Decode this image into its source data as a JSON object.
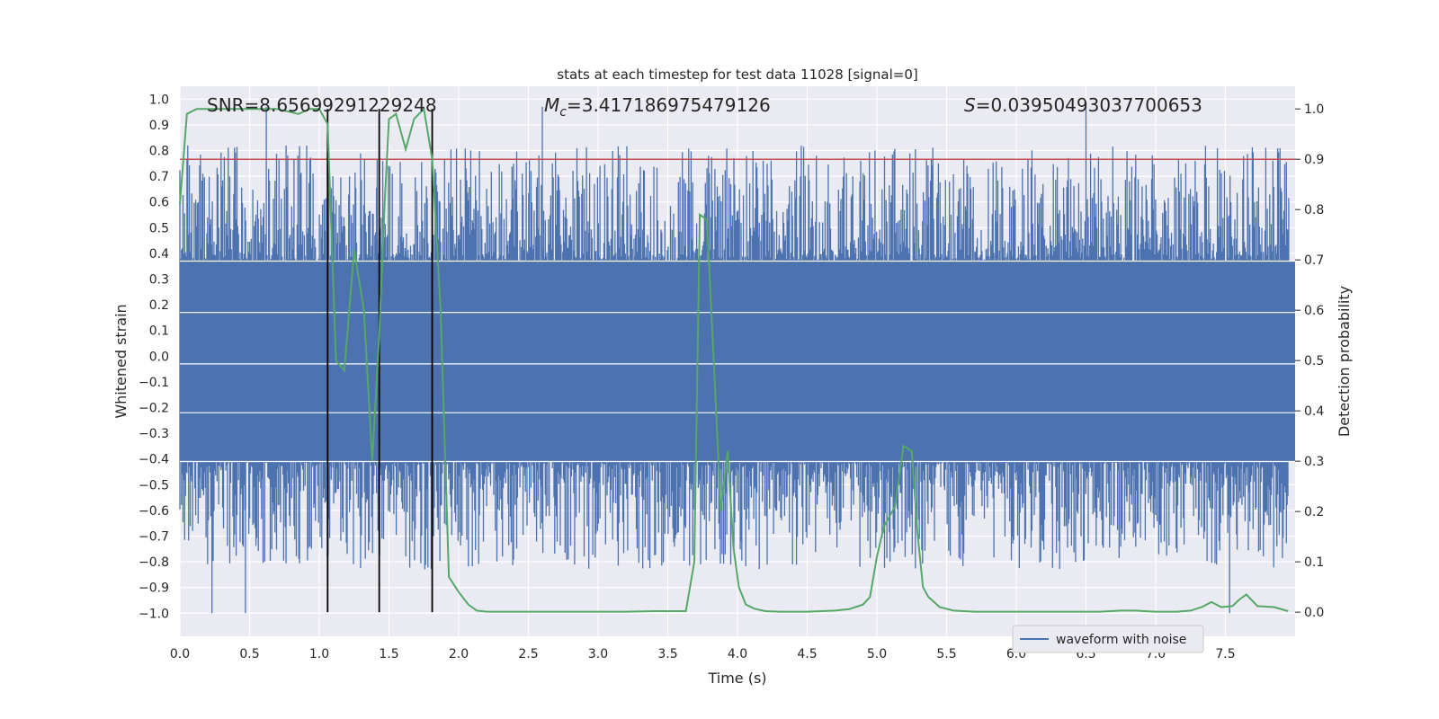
{
  "chart_data": {
    "type": "line",
    "title": "stats at each timestep for test data 11028 [signal=0]",
    "xlabel": "Time (s)",
    "ylabel_left": "Whitened strain",
    "ylabel_right": "Detection probability",
    "xlim": [
      0.0,
      8.0
    ],
    "ylim_left": [
      -1.09,
      1.05
    ],
    "ylim_right": [
      -0.048,
      1.045
    ],
    "x_ticks": [
      "0.0",
      "0.5",
      "1.0",
      "1.5",
      "2.0",
      "2.5",
      "3.0",
      "3.5",
      "4.0",
      "4.5",
      "5.0",
      "5.5",
      "6.0",
      "6.5",
      "7.0",
      "7.5"
    ],
    "y_ticks_left": [
      "1.0",
      "0.9",
      "0.8",
      "0.7",
      "0.6",
      "0.5",
      "0.4",
      "0.3",
      "0.2",
      "0.1",
      "0.0",
      "-0.1",
      "-0.2",
      "-0.3",
      "-0.4",
      "-0.5",
      "-0.6",
      "-0.7",
      "-0.8",
      "-0.9",
      "-1.0"
    ],
    "y_ticks_right": [
      "1.0",
      "0.9",
      "0.8",
      "0.7",
      "0.6",
      "0.5",
      "0.4",
      "0.3",
      "0.2",
      "0.1",
      "0.0"
    ],
    "grid": true,
    "legend_position": "lower-right",
    "annotations": {
      "snr": "SNR=8.65699291229248",
      "mc_prefix": "M",
      "mc_sub": "c",
      "mc_value": "=3.417186975479126",
      "s_symbol": "S",
      "s_value": "=0.03950493037700653"
    },
    "threshold": 0.9,
    "vertical_lines": [
      1.06,
      1.43,
      1.81
    ],
    "series": [
      {
        "name": "waveform with noise",
        "color": "#4c72b0",
        "band_upper": 0.37,
        "band_lower": -0.41,
        "spike_max_abs": [
          1.0,
          1.0
        ],
        "notable_peaks_x": [
          0.62,
          2.6,
          6.5
        ],
        "notable_troughs_x": [
          0.23,
          0.47,
          7.53
        ],
        "description_points": 8000
      },
      {
        "name": "detection probability",
        "color": "#55a868",
        "x": [
          0.0,
          0.05,
          0.12,
          0.25,
          0.4,
          0.55,
          0.7,
          0.85,
          0.93,
          1.0,
          1.06,
          1.12,
          1.18,
          1.25,
          1.32,
          1.38,
          1.43,
          1.47,
          1.5,
          1.55,
          1.62,
          1.68,
          1.75,
          1.81,
          1.87,
          1.93,
          2.0,
          2.07,
          2.13,
          2.2,
          2.4,
          2.7,
          3.0,
          3.2,
          3.4,
          3.63,
          3.69,
          3.73,
          3.78,
          3.83,
          3.88,
          3.93,
          3.97,
          4.01,
          4.06,
          4.12,
          4.2,
          4.3,
          4.5,
          4.7,
          4.8,
          4.9,
          4.95,
          5.0,
          5.05,
          5.13,
          5.19,
          5.25,
          5.29,
          5.33,
          5.37,
          5.45,
          5.55,
          5.7,
          6.0,
          6.3,
          6.6,
          6.75,
          6.85,
          7.0,
          7.15,
          7.25,
          7.33,
          7.4,
          7.47,
          7.55,
          7.6,
          7.65,
          7.73,
          7.85,
          7.95
        ],
        "y": [
          0.81,
          0.99,
          1.0,
          1.0,
          1.0,
          1.0,
          1.0,
          0.99,
          1.0,
          1.0,
          0.97,
          0.5,
          0.48,
          0.72,
          0.6,
          0.3,
          0.55,
          0.82,
          0.98,
          0.99,
          0.92,
          0.98,
          1.0,
          0.9,
          0.6,
          0.07,
          0.04,
          0.015,
          0.003,
          0.001,
          0.001,
          0.001,
          0.001,
          0.001,
          0.002,
          0.002,
          0.1,
          0.79,
          0.78,
          0.5,
          0.2,
          0.32,
          0.13,
          0.05,
          0.015,
          0.007,
          0.002,
          0.001,
          0.001,
          0.003,
          0.006,
          0.015,
          0.03,
          0.11,
          0.17,
          0.21,
          0.33,
          0.32,
          0.16,
          0.05,
          0.03,
          0.01,
          0.003,
          0.001,
          0.001,
          0.001,
          0.001,
          0.003,
          0.003,
          0.001,
          0.001,
          0.003,
          0.01,
          0.02,
          0.01,
          0.012,
          0.025,
          0.035,
          0.012,
          0.01,
          0.002
        ]
      }
    ]
  }
}
